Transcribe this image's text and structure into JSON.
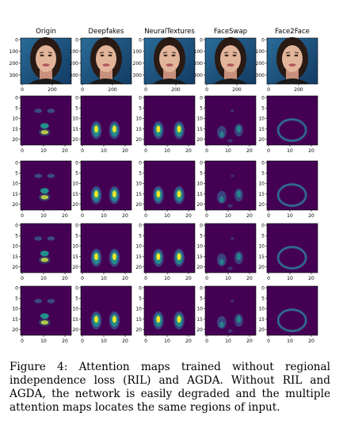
{
  "figure": {
    "columns": [
      "Origin",
      "Deepfakes",
      "NeuralTextures",
      "FaceSwap",
      "Face2Face"
    ],
    "face_row": {
      "y_ticks": [
        "0",
        "100",
        "200",
        "300"
      ],
      "x_ticks": [
        "0",
        "200"
      ]
    },
    "map_rows": {
      "count": 4,
      "y_ticks": [
        "0",
        "5",
        "10",
        "15",
        "20"
      ],
      "x_ticks": [
        "0",
        "10",
        "20"
      ]
    },
    "colors": {
      "map_background": "#440154",
      "map_mid": "#3b528b",
      "map_high": "#21918c",
      "map_peak": "#fde725"
    }
  },
  "caption": "Figure 4: Attention maps trained without regional independence loss (RIL) and AGDA. Without RIL and AGDA, the network is easily degraded and the multiple attention maps locates the same regions of input."
}
